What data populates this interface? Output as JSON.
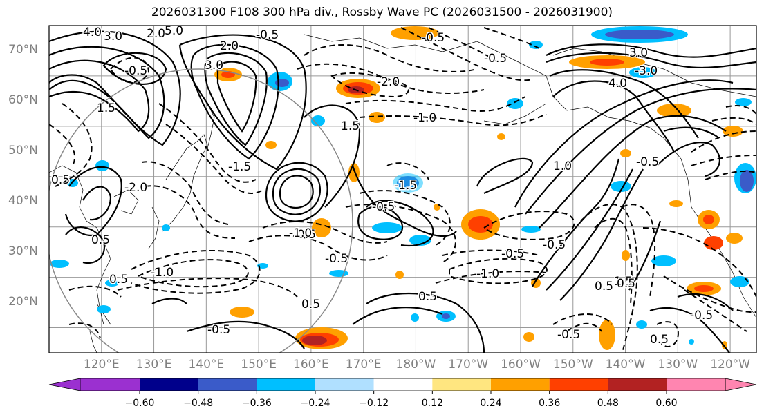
{
  "title": "2026031300 F108 300 hPa div., Rossby Wave PC (2026031500 - 2026031900)",
  "lat_labels": [
    "70°N",
    "60°N",
    "50°N",
    "40°N",
    "30°N",
    "20°N"
  ],
  "lon_labels": [
    "120°E",
    "130°E",
    "140°E",
    "150°E",
    "160°E",
    "170°E",
    "180°W",
    "170°W",
    "160°W",
    "150°W",
    "140°W",
    "130°W",
    "120°W"
  ],
  "contour_labels": [
    "4.0",
    "3.0",
    "2.0",
    "5.0",
    "-0.5",
    "2.0",
    "3.0",
    "-0.5",
    "-2.0",
    "-0.5",
    "1.5",
    "-1.0",
    "1.5",
    "-0.5",
    "3.0",
    "-3.0",
    "4.0",
    "1.0",
    "0.5",
    "-1.5",
    "-2.0",
    "0.5",
    "-1.5",
    "-0.5",
    "0.5",
    "-1.0",
    "-0.5",
    "-0.5",
    "-1.0",
    "0.5",
    "0.5",
    "-1.0",
    "0.5",
    "-0.5",
    "-0.5",
    "-0.5",
    "0.5",
    "1.5",
    "0.5",
    "-0.5",
    "0.5",
    "-0.5"
  ],
  "colorbar": {
    "ticks": [
      "−0.60",
      "−0.48",
      "−0.36",
      "−0.24",
      "−0.12",
      "0.12",
      "0.24",
      "0.36",
      "0.48",
      "0.60"
    ],
    "colors": [
      "#9b30d0",
      "#00008b",
      "#3a5bc9",
      "#00bfff",
      "#b0e0ff",
      "#ffffff",
      "#ffe680",
      "#ffa000",
      "#ff4000",
      "#b22222",
      "#ff85b0"
    ]
  }
}
